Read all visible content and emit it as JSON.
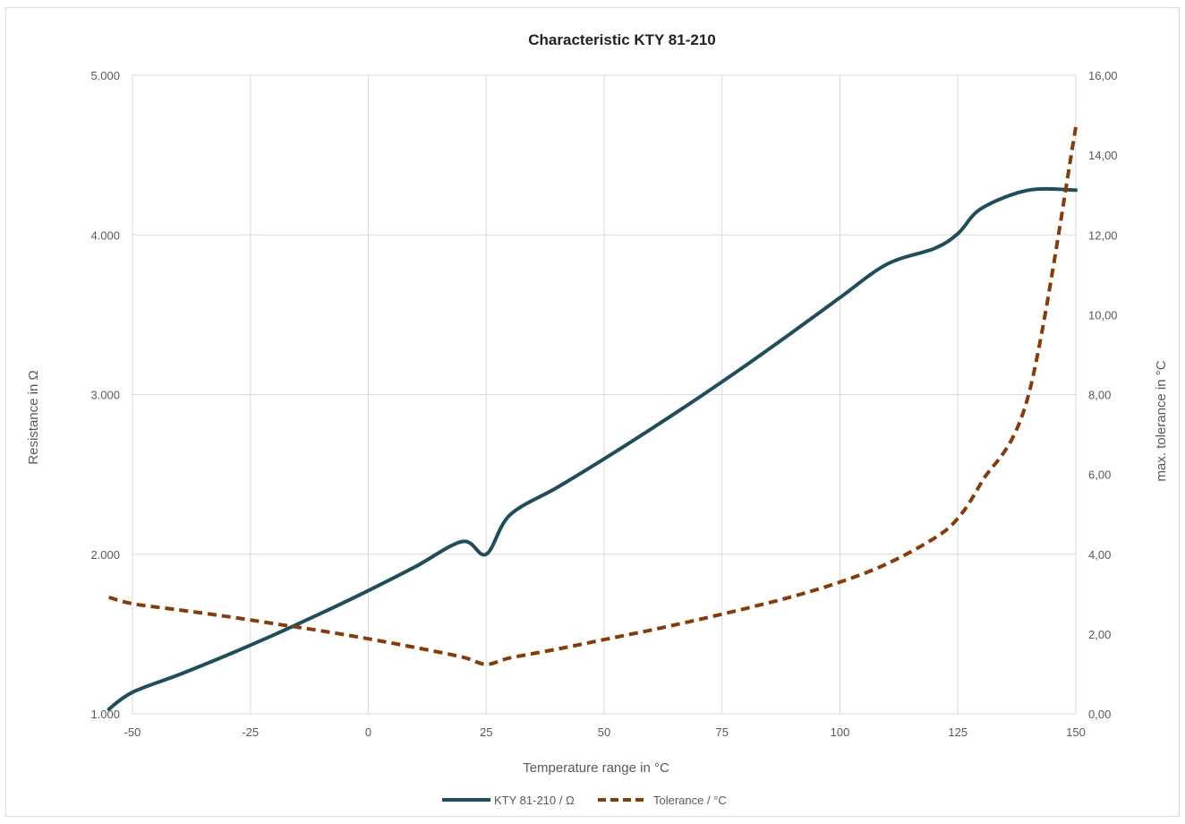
{
  "chart_data": {
    "type": "line",
    "title": "Characteristic KTY 81-210",
    "xlabel": "Temperature range in °C",
    "ylabel": "Resistance in Ω",
    "y2label": "max. tolerance in °C",
    "xlim": [
      -50,
      150
    ],
    "ylim": [
      1000,
      5000
    ],
    "y2lim": [
      0,
      16
    ],
    "grid": true,
    "legend_position": "bottom",
    "x_ticks": [
      -50,
      -25,
      0,
      25,
      50,
      75,
      100,
      125,
      150
    ],
    "x_tick_labels": [
      "-50",
      "-25",
      "0",
      "25",
      "50",
      "75",
      "100",
      "125",
      "150"
    ],
    "y_ticks": [
      1000,
      2000,
      3000,
      4000,
      5000
    ],
    "y_tick_labels": [
      "1.000",
      "2.000",
      "3.000",
      "4.000",
      "5.000"
    ],
    "y2_ticks": [
      0,
      2,
      4,
      6,
      8,
      10,
      12,
      14,
      16
    ],
    "y2_tick_labels": [
      "0,00",
      "2,00",
      "4,00",
      "6,00",
      "8,00",
      "10,00",
      "12,00",
      "14,00",
      "16,00"
    ],
    "series": [
      {
        "name": "KTY 81-210 / Ω",
        "axis": "left",
        "color": "#1f4e5a",
        "style": "solid",
        "x": [
          -55,
          -50,
          -40,
          -30,
          -20,
          -10,
          0,
          10,
          20,
          25,
          30,
          40,
          50,
          60,
          70,
          80,
          90,
          100,
          110,
          120,
          125,
          130,
          140,
          150
        ],
        "values": [
          1030,
          1135,
          1247,
          1367,
          1495,
          1630,
          1772,
          1922,
          2080,
          2000,
          2245,
          2417,
          2597,
          2785,
          2980,
          3182,
          3392,
          3607,
          3817,
          3915,
          4008,
          4166,
          4280,
          4280
        ]
      },
      {
        "name": "Tolerance / °C",
        "axis": "right",
        "color": "#843c0c",
        "style": "dashed",
        "x": [
          -55,
          -50,
          -40,
          -30,
          -20,
          -10,
          0,
          10,
          20,
          25,
          30,
          40,
          50,
          60,
          70,
          80,
          90,
          100,
          110,
          120,
          125,
          130,
          140,
          150
        ],
        "values": [
          2.92,
          2.76,
          2.6,
          2.44,
          2.26,
          2.08,
          1.88,
          1.66,
          1.42,
          1.24,
          1.4,
          1.62,
          1.86,
          2.1,
          2.36,
          2.64,
          2.94,
          3.3,
          3.76,
          4.4,
          4.9,
          5.8,
          8.0,
          14.7
        ]
      }
    ]
  }
}
